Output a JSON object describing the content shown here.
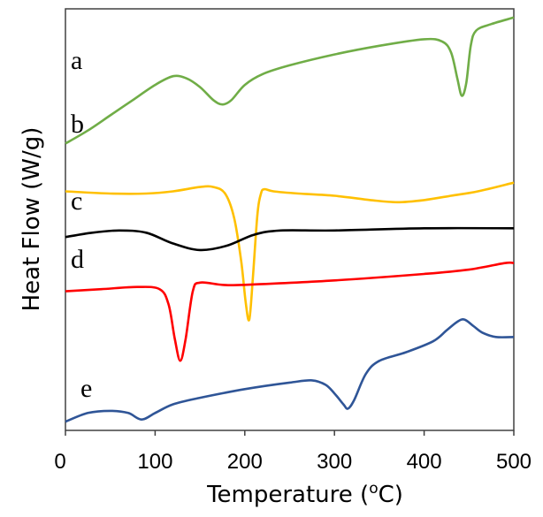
{
  "chart_data": {
    "type": "line",
    "xlabel": "Temperature (oC)",
    "xlabel_parts": {
      "prefix": "Temperature (",
      "superscript": "o",
      "suffix": "C)"
    },
    "ylabel": "Heat Flow (W/g)",
    "xlim": [
      0,
      500
    ],
    "x_ticks": [
      "0",
      "100",
      "200",
      "300",
      "400",
      "500"
    ],
    "y_ticks_shown": false,
    "grid": false,
    "legend": "none",
    "y_units": "arbitrary, curves offset vertically",
    "series": [
      {
        "name": "a",
        "color": "#70ad47",
        "points": [
          [
            0,
            0.8
          ],
          [
            25,
            0.86
          ],
          [
            50,
            0.93
          ],
          [
            75,
            1.0
          ],
          [
            100,
            1.07
          ],
          [
            120,
            1.11
          ],
          [
            135,
            1.1
          ],
          [
            150,
            1.06
          ],
          [
            165,
            1.0
          ],
          [
            175,
            0.98
          ],
          [
            185,
            1.0
          ],
          [
            200,
            1.07
          ],
          [
            220,
            1.12
          ],
          [
            250,
            1.16
          ],
          [
            300,
            1.21
          ],
          [
            350,
            1.25
          ],
          [
            400,
            1.28
          ],
          [
            420,
            1.27
          ],
          [
            430,
            1.22
          ],
          [
            437,
            1.1
          ],
          [
            442,
            1.02
          ],
          [
            447,
            1.08
          ],
          [
            452,
            1.25
          ],
          [
            458,
            1.32
          ],
          [
            475,
            1.35
          ],
          [
            500,
            1.38
          ]
        ]
      },
      {
        "name": "b",
        "color": "#ffc000",
        "points": [
          [
            0,
            0.58
          ],
          [
            50,
            0.57
          ],
          [
            90,
            0.57
          ],
          [
            120,
            0.58
          ],
          [
            150,
            0.6
          ],
          [
            165,
            0.6
          ],
          [
            178,
            0.57
          ],
          [
            188,
            0.46
          ],
          [
            196,
            0.26
          ],
          [
            201,
            0.07
          ],
          [
            205,
            -0.01
          ],
          [
            209,
            0.18
          ],
          [
            214,
            0.47
          ],
          [
            218,
            0.57
          ],
          [
            222,
            0.59
          ],
          [
            232,
            0.58
          ],
          [
            260,
            0.57
          ],
          [
            300,
            0.56
          ],
          [
            340,
            0.54
          ],
          [
            370,
            0.53
          ],
          [
            400,
            0.54
          ],
          [
            430,
            0.56
          ],
          [
            460,
            0.58
          ],
          [
            500,
            0.62
          ]
        ]
      },
      {
        "name": "c",
        "color": "#000000",
        "points": [
          [
            0,
            0.37
          ],
          [
            30,
            0.39
          ],
          [
            60,
            0.4
          ],
          [
            90,
            0.39
          ],
          [
            120,
            0.34
          ],
          [
            150,
            0.31
          ],
          [
            180,
            0.33
          ],
          [
            210,
            0.38
          ],
          [
            240,
            0.4
          ],
          [
            300,
            0.4
          ],
          [
            400,
            0.41
          ],
          [
            500,
            0.41
          ]
        ]
      },
      {
        "name": "d",
        "color": "#ff0000",
        "points": [
          [
            0,
            0.12
          ],
          [
            40,
            0.13
          ],
          [
            80,
            0.14
          ],
          [
            105,
            0.13
          ],
          [
            115,
            0.06
          ],
          [
            122,
            -0.1
          ],
          [
            128,
            -0.2
          ],
          [
            134,
            -0.1
          ],
          [
            142,
            0.12
          ],
          [
            150,
            0.16
          ],
          [
            175,
            0.15
          ],
          [
            200,
            0.15
          ],
          [
            300,
            0.17
          ],
          [
            400,
            0.2
          ],
          [
            450,
            0.22
          ],
          [
            490,
            0.25
          ],
          [
            500,
            0.25
          ]
        ]
      },
      {
        "name": "e",
        "color": "#2f5597",
        "points": [
          [
            0,
            -0.48
          ],
          [
            25,
            -0.44
          ],
          [
            50,
            -0.43
          ],
          [
            70,
            -0.44
          ],
          [
            85,
            -0.47
          ],
          [
            100,
            -0.44
          ],
          [
            120,
            -0.4
          ],
          [
            150,
            -0.37
          ],
          [
            200,
            -0.33
          ],
          [
            250,
            -0.3
          ],
          [
            275,
            -0.29
          ],
          [
            290,
            -0.31
          ],
          [
            300,
            -0.35
          ],
          [
            310,
            -0.4
          ],
          [
            315,
            -0.42
          ],
          [
            322,
            -0.38
          ],
          [
            335,
            -0.26
          ],
          [
            350,
            -0.2
          ],
          [
            380,
            -0.16
          ],
          [
            410,
            -0.11
          ],
          [
            425,
            -0.06
          ],
          [
            437,
            -0.02
          ],
          [
            445,
            -0.01
          ],
          [
            455,
            -0.04
          ],
          [
            465,
            -0.07
          ],
          [
            480,
            -0.09
          ],
          [
            500,
            -0.09
          ]
        ]
      }
    ]
  }
}
